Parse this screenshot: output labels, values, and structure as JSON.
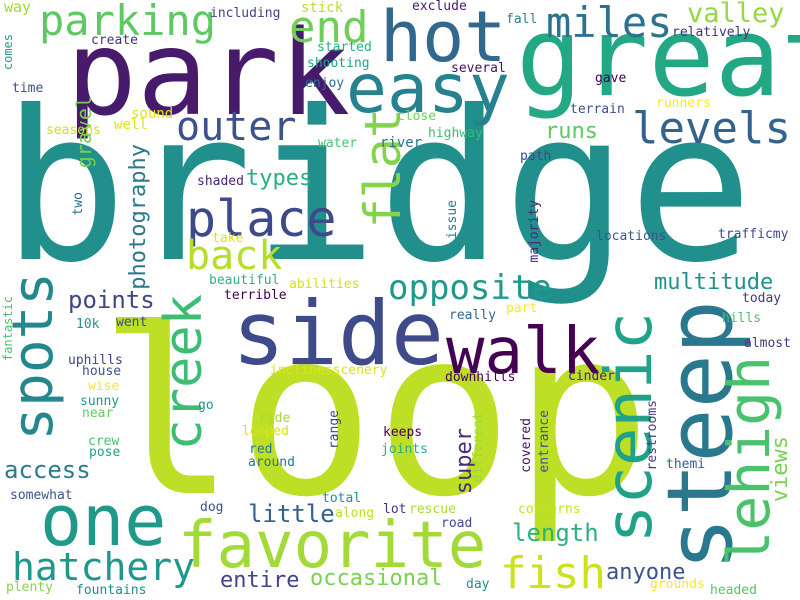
{
  "words": [
    {
      "id": "bridge",
      "text": "bridge",
      "color": "#21908d"
    },
    {
      "id": "loop",
      "text": "loop",
      "color": "#bddf26"
    },
    {
      "id": "park",
      "text": "park",
      "color": "#481a6c"
    },
    {
      "id": "great",
      "text": "great",
      "color": "#22a884"
    },
    {
      "id": "hot",
      "text": "hot",
      "color": "#31688e"
    },
    {
      "id": "easy",
      "text": "easy",
      "color": "#26828e"
    },
    {
      "id": "parking",
      "text": "parking",
      "color": "#5ec962"
    },
    {
      "id": "end",
      "text": "end",
      "color": "#6ece58"
    },
    {
      "id": "miles",
      "text": "miles",
      "color": "#2c728e"
    },
    {
      "id": "valley",
      "text": "valley",
      "color": "#95d840"
    },
    {
      "id": "outer",
      "text": "outer",
      "color": "#3b528b"
    },
    {
      "id": "levels",
      "text": "levels",
      "color": "#33638d"
    },
    {
      "id": "place",
      "text": "place",
      "color": "#3e4989"
    },
    {
      "id": "back",
      "text": "back",
      "color": "#b5de2b"
    },
    {
      "id": "flat",
      "text": "flat",
      "color": "#84d44b"
    },
    {
      "id": "steep",
      "text": "steep",
      "color": "#2a788e"
    },
    {
      "id": "side",
      "text": "side",
      "color": "#3e4a89"
    },
    {
      "id": "walk",
      "text": "walk",
      "color": "#440154"
    },
    {
      "id": "spots",
      "text": "spots",
      "color": "#23888e"
    },
    {
      "id": "creek",
      "text": "creek",
      "color": "#3dbc74"
    },
    {
      "id": "scenic",
      "text": "scenic",
      "color": "#1fa287"
    },
    {
      "id": "lehigh",
      "text": "lehigh",
      "color": "#4ac16d"
    },
    {
      "id": "one",
      "text": "one",
      "color": "#1f998a"
    },
    {
      "id": "favorite",
      "text": "favorite",
      "color": "#a2da37"
    },
    {
      "id": "hatchery",
      "text": "hatchery",
      "color": "#1f988b"
    },
    {
      "id": "fish",
      "text": "fish",
      "color": "#cde11d"
    },
    {
      "id": "opposite",
      "text": "opposite",
      "color": "#1f9a8a"
    },
    {
      "id": "multitude",
      "text": "multitude",
      "color": "#21918c"
    },
    {
      "id": "runs",
      "text": "runs",
      "color": "#5ec962"
    },
    {
      "id": "types",
      "text": "types",
      "color": "#29af7f"
    },
    {
      "id": "photography",
      "text": "photography",
      "color": "#2a788e"
    },
    {
      "id": "gravel",
      "text": "gravel",
      "color": "#75d054"
    },
    {
      "id": "points",
      "text": "points",
      "color": "#3f4788"
    },
    {
      "id": "access",
      "text": "access",
      "color": "#287c8e"
    },
    {
      "id": "little",
      "text": "little",
      "color": "#355f8d"
    },
    {
      "id": "entire",
      "text": "entire",
      "color": "#414487"
    },
    {
      "id": "occasional",
      "text": "occasional",
      "color": "#7ad151"
    },
    {
      "id": "length",
      "text": "length",
      "color": "#2db27d"
    },
    {
      "id": "anyone",
      "text": "anyone",
      "color": "#3b528b"
    },
    {
      "id": "super",
      "text": "super",
      "color": "#472d7b"
    },
    {
      "id": "views",
      "text": "views",
      "color": "#7ad151"
    },
    {
      "id": "way",
      "text": "way",
      "color": "#9fda3a"
    },
    {
      "id": "comes",
      "text": "comes",
      "color": "#1f9e89"
    },
    {
      "id": "time",
      "text": "time",
      "color": "#3b528b"
    },
    {
      "id": "seasons",
      "text": "seasons",
      "color": "#d0e11c"
    },
    {
      "id": "well",
      "text": "well",
      "color": "#dde318"
    },
    {
      "id": "sound",
      "text": "sound",
      "color": "#e2e418"
    },
    {
      "id": "create",
      "text": "create",
      "color": "#46337e"
    },
    {
      "id": "including",
      "text": "including",
      "color": "#414487"
    },
    {
      "id": "stick",
      "text": "stick",
      "color": "#bddf26"
    },
    {
      "id": "started",
      "text": "started",
      "color": "#29af7f"
    },
    {
      "id": "shooting",
      "text": "shooting",
      "color": "#20a486"
    },
    {
      "id": "enjoy",
      "text": "enjoy",
      "color": "#31688e"
    },
    {
      "id": "exclude",
      "text": "exclude",
      "color": "#481b6d"
    },
    {
      "id": "fall",
      "text": "fall",
      "color": "#25858e"
    },
    {
      "id": "relatively",
      "text": "relatively",
      "color": "#46307e"
    },
    {
      "id": "several",
      "text": "several",
      "color": "#471164"
    },
    {
      "id": "gave",
      "text": "gave",
      "color": "#440154"
    },
    {
      "id": "runners",
      "text": "runners",
      "color": "#fde725"
    },
    {
      "id": "terrain",
      "text": "terrain",
      "color": "#3b528b"
    },
    {
      "id": "close",
      "text": "close",
      "color": "#6ece58"
    },
    {
      "id": "highway",
      "text": "highway",
      "color": "#3dbc74"
    },
    {
      "id": "water",
      "text": "water",
      "color": "#4ac16d"
    },
    {
      "id": "river",
      "text": "river",
      "color": "#2c728e"
    },
    {
      "id": "path",
      "text": "path",
      "color": "#3e4a89"
    },
    {
      "id": "shaded",
      "text": "shaded",
      "color": "#482475"
    },
    {
      "id": "two",
      "text": "two",
      "color": "#2c728e"
    },
    {
      "id": "take",
      "text": "take",
      "color": "#dde318"
    },
    {
      "id": "issue",
      "text": "issue",
      "color": "#2a788e"
    },
    {
      "id": "majority",
      "text": "majority",
      "color": "#482878"
    },
    {
      "id": "locations",
      "text": "locations",
      "color": "#39568c"
    },
    {
      "id": "trafficmy",
      "text": "trafficmy",
      "color": "#3e4a89"
    },
    {
      "id": "beautiful",
      "text": "beautiful",
      "color": "#2db27d"
    },
    {
      "id": "abilities",
      "text": "abilities",
      "color": "#d2e21b"
    },
    {
      "id": "terrible",
      "text": "terrible",
      "color": "#440154"
    },
    {
      "id": "part",
      "text": "part",
      "color": "#fde725"
    },
    {
      "id": "today",
      "text": "today",
      "color": "#453781"
    },
    {
      "id": "hills",
      "text": "hills",
      "color": "#4ac16d"
    },
    {
      "id": "almost",
      "text": "almost",
      "color": "#443983"
    },
    {
      "id": "fantastic",
      "text": "fantastic",
      "color": "#4ac16d"
    },
    {
      "id": "10k",
      "text": "10k",
      "color": "#21918c"
    },
    {
      "id": "went",
      "text": "went",
      "color": "#3e4989"
    },
    {
      "id": "really",
      "text": "really",
      "color": "#31688e"
    },
    {
      "id": "uphills",
      "text": "uphills",
      "color": "#404688"
    },
    {
      "id": "house",
      "text": "house",
      "color": "#3b528b"
    },
    {
      "id": "wise",
      "text": "wise",
      "color": "#fde725"
    },
    {
      "id": "sunny",
      "text": "sunny",
      "color": "#1f988b"
    },
    {
      "id": "near",
      "text": "near",
      "color": "#63cb5f"
    },
    {
      "id": "inclinesscenery",
      "text": "inclinesscenery",
      "color": "#dde318"
    },
    {
      "id": "downhills",
      "text": "downhills",
      "color": "#440154"
    },
    {
      "id": "cinder",
      "text": "cinder",
      "color": "#482173"
    },
    {
      "id": "go",
      "text": "go",
      "color": "#1f968b"
    },
    {
      "id": "restrooms",
      "text": "restrooms",
      "color": "#433e85"
    },
    {
      "id": "crew",
      "text": "crew",
      "color": "#4ac16d"
    },
    {
      "id": "pose",
      "text": "pose",
      "color": "#1fa088"
    },
    {
      "id": "ride",
      "text": "ride",
      "color": "#a5db36"
    },
    {
      "id": "looped",
      "text": "looped",
      "color": "#dde318"
    },
    {
      "id": "red",
      "text": "red",
      "color": "#2a788e"
    },
    {
      "id": "around",
      "text": "around",
      "color": "#2a768e"
    },
    {
      "id": "range",
      "text": "range",
      "color": "#3e4a89"
    },
    {
      "id": "keeps",
      "text": "keeps",
      "color": "#440154"
    },
    {
      "id": "joints",
      "text": "joints",
      "color": "#29af7f"
    },
    {
      "id": "different",
      "text": "different",
      "color": "#9fda3a"
    },
    {
      "id": "covered",
      "text": "covered",
      "color": "#471164"
    },
    {
      "id": "entrance",
      "text": "entrance",
      "color": "#3b528b"
    },
    {
      "id": "themi",
      "text": "themi",
      "color": "#365c8d"
    },
    {
      "id": "somewhat",
      "text": "somewhat",
      "color": "#39568c"
    },
    {
      "id": "dog",
      "text": "dog",
      "color": "#3a548c"
    },
    {
      "id": "total",
      "text": "total",
      "color": "#21908d"
    },
    {
      "id": "along",
      "text": "along",
      "color": "#bddf26"
    },
    {
      "id": "lot",
      "text": "lot",
      "color": "#46327e"
    },
    {
      "id": "rescue",
      "text": "rescue",
      "color": "#a8db34"
    },
    {
      "id": "road",
      "text": "road",
      "color": "#3f4889"
    },
    {
      "id": "concerns",
      "text": "concerns",
      "color": "#c8e020"
    },
    {
      "id": "plenty",
      "text": "plenty",
      "color": "#86d549"
    },
    {
      "id": "fountains",
      "text": "fountains",
      "color": "#228c8d"
    },
    {
      "id": "day",
      "text": "day",
      "color": "#21908d"
    },
    {
      "id": "grounds",
      "text": "grounds",
      "color": "#fde725"
    },
    {
      "id": "headed",
      "text": "headed",
      "color": "#52c569"
    }
  ]
}
